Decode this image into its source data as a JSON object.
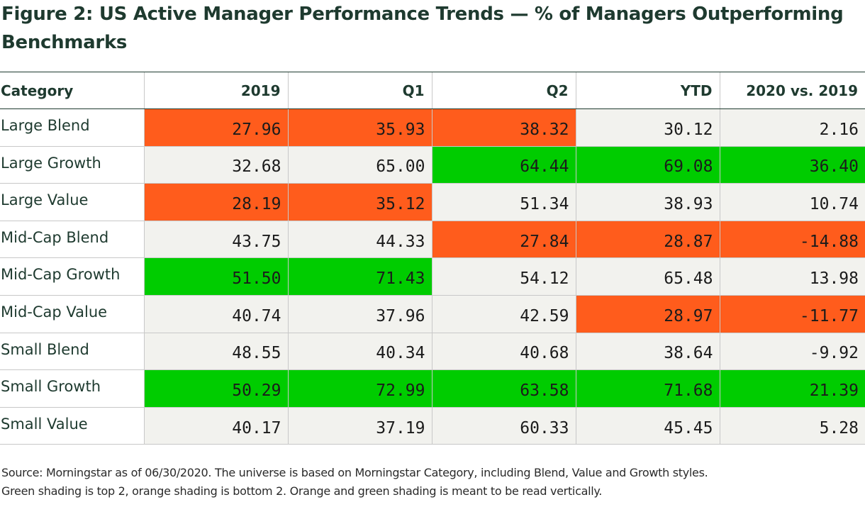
{
  "figure": {
    "title": "Figure 2: US Active Manager Performance Trends — % of Managers Outperforming Benchmarks",
    "source_line1": "Source: Morningstar as of 06/30/2020. The universe is based on Morningstar Category, including Blend, Value and Growth styles.",
    "source_line2": "Green shading is top 2, orange shading is bottom 2. Orange and green shading is meant to be read vertically."
  },
  "colors": {
    "orange": "#ff5c1c",
    "green": "#00cc00",
    "neutral": "#f2f2ee",
    "title": "#1e3a2f"
  },
  "chart_data": {
    "type": "table",
    "title": "Figure 2: US Active Manager Performance Trends — % of Managers Outperforming Benchmarks",
    "columns": [
      "Category",
      "2019",
      "Q1",
      "Q2",
      "YTD",
      "2020 vs. 2019"
    ],
    "rows": [
      {
        "category": "Large Blend",
        "values": [
          "27.96",
          "35.93",
          "38.32",
          "30.12",
          "2.16"
        ],
        "shading": [
          "orange",
          "orange",
          "orange",
          "",
          ""
        ]
      },
      {
        "category": "Large Growth",
        "values": [
          "32.68",
          "65.00",
          "64.44",
          "69.08",
          "36.40"
        ],
        "shading": [
          "",
          "",
          "green",
          "green",
          "green"
        ]
      },
      {
        "category": "Large Value",
        "values": [
          "28.19",
          "35.12",
          "51.34",
          "38.93",
          "10.74"
        ],
        "shading": [
          "orange",
          "orange",
          "",
          "",
          ""
        ]
      },
      {
        "category": "Mid-Cap Blend",
        "values": [
          "43.75",
          "44.33",
          "27.84",
          "28.87",
          "-14.88"
        ],
        "shading": [
          "",
          "",
          "orange",
          "orange",
          "orange"
        ]
      },
      {
        "category": "Mid-Cap Growth",
        "values": [
          "51.50",
          "71.43",
          "54.12",
          "65.48",
          "13.98"
        ],
        "shading": [
          "green",
          "green",
          "",
          "",
          ""
        ]
      },
      {
        "category": "Mid-Cap Value",
        "values": [
          "40.74",
          "37.96",
          "42.59",
          "28.97",
          "-11.77"
        ],
        "shading": [
          "",
          "",
          "",
          "orange",
          "orange"
        ]
      },
      {
        "category": "Small Blend",
        "values": [
          "48.55",
          "40.34",
          "40.68",
          "38.64",
          "-9.92"
        ],
        "shading": [
          "",
          "",
          "",
          "",
          ""
        ]
      },
      {
        "category": "Small Growth",
        "values": [
          "50.29",
          "72.99",
          "63.58",
          "71.68",
          "21.39"
        ],
        "shading": [
          "green",
          "green",
          "green",
          "green",
          "green"
        ]
      },
      {
        "category": "Small Value",
        "values": [
          "40.17",
          "37.19",
          "60.33",
          "45.45",
          "5.28"
        ],
        "shading": [
          "",
          "",
          "",
          "",
          ""
        ]
      }
    ]
  }
}
